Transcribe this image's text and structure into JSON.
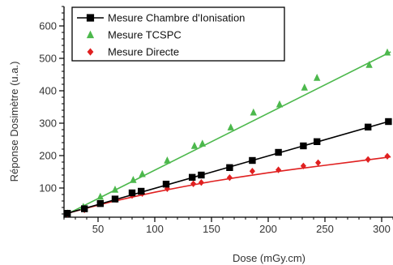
{
  "chart_data": {
    "type": "scatter",
    "xlabel": "Dose (mGy.cm)",
    "ylabel": "Réponse Dosimètre (u.a.)",
    "xlim": [
      20,
      310
    ],
    "ylim": [
      10,
      660
    ],
    "x_major_ticks": [
      50,
      100,
      150,
      200,
      250,
      300
    ],
    "y_major_ticks": [
      100,
      200,
      300,
      400,
      500,
      600
    ],
    "x_minor_step": 10,
    "y_minor_step": 20,
    "grid": false,
    "legend_position": "top-left",
    "series": [
      {
        "name": "Mesure Chambre d'Ionisation",
        "color": "#000000",
        "marker": "square",
        "x": [
          23,
          38,
          52,
          65,
          80,
          88,
          110,
          133,
          141,
          166,
          186,
          209,
          231,
          243,
          288,
          306
        ],
        "y": [
          22,
          36,
          52,
          66,
          85,
          90,
          112,
          133,
          140,
          163,
          185,
          210,
          230,
          243,
          288,
          305
        ],
        "fit": {
          "type": "linear",
          "x": [
            23,
            306
          ],
          "y": [
            22,
            305
          ]
        }
      },
      {
        "name": "Mesure TCSPC",
        "color": "#4cb84c",
        "marker": "triangle",
        "x": [
          23,
          37,
          52,
          65,
          81,
          89,
          111,
          135,
          142,
          167,
          187,
          210,
          232,
          243,
          289,
          305
        ],
        "y": [
          22,
          42,
          73,
          95,
          125,
          143,
          185,
          230,
          237,
          287,
          333,
          358,
          410,
          440,
          480,
          518
        ],
        "fit": {
          "type": "linear",
          "x": [
            23,
            308
          ],
          "y": [
            20,
            520
          ]
        }
      },
      {
        "name": "Mesure Directe",
        "color": "#e02020",
        "marker": "diamond",
        "x": [
          23,
          38,
          52,
          66,
          80,
          89,
          111,
          134,
          141,
          166,
          186,
          209,
          231,
          244,
          288,
          305
        ],
        "y": [
          20,
          33,
          52,
          65,
          77,
          83,
          98,
          113,
          117,
          132,
          152,
          156,
          168,
          178,
          188,
          198
        ],
        "fit": {
          "type": "curve",
          "x": [
            23,
            40,
            60,
            80,
            100,
            125,
            150,
            175,
            200,
            225,
            250,
            275,
            308
          ],
          "y": [
            22,
            38,
            56,
            72,
            87,
            104,
            120,
            134,
            147,
            159,
            170,
            181,
            196
          ]
        }
      }
    ]
  }
}
